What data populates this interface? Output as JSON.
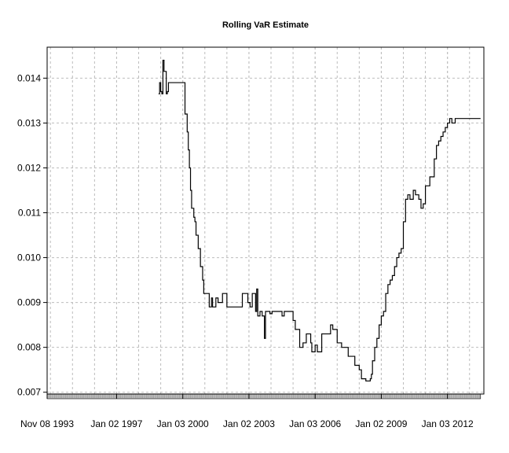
{
  "chart_data": {
    "type": "line",
    "title": "Rolling VaR Estimate",
    "xlabel": "",
    "ylabel": "",
    "x_tick_labels": [
      "Nov 08 1993",
      "Jan 02 1997",
      "Jan 03 2000",
      "Jan 02 2003",
      "Jan 03 2006",
      "Jan 02 2009",
      "Jan 03 2012"
    ],
    "x_ticks": [
      1993.85,
      1997.0,
      2000.0,
      2003.0,
      2006.0,
      2009.0,
      2012.0
    ],
    "xlim": [
      1993.85,
      2013.65
    ],
    "y_ticks": [
      0.007,
      0.008,
      0.009,
      0.01,
      0.011,
      0.012,
      0.013,
      0.014
    ],
    "y_tick_labels": [
      "0.007",
      "0.008",
      "0.009",
      "0.010",
      "0.011",
      "0.012",
      "0.013",
      "0.014"
    ],
    "ylim": [
      0.00696,
      0.01469
    ],
    "grid": true,
    "series": [
      {
        "color": "#000000",
        "step": true,
        "x": [
          1998.9,
          1998.95,
          1999.0,
          1999.05,
          1999.1,
          1999.15,
          1999.25,
          1999.3,
          1999.35,
          1999.45,
          1999.5,
          1999.55,
          1999.6,
          1999.9,
          2000.1,
          2000.2,
          2000.25,
          2000.3,
          2000.35,
          2000.4,
          2000.5,
          2000.55,
          2000.6,
          2000.7,
          2000.8,
          2000.9,
          2000.95,
          2001.2,
          2001.3,
          2001.35,
          2001.5,
          2001.6,
          2001.8,
          2002.0,
          2002.2,
          2002.4,
          2002.6,
          2002.7,
          2002.8,
          2002.95,
          2003.05,
          2003.15,
          2003.3,
          2003.35,
          2003.4,
          2003.5,
          2003.6,
          2003.7,
          2003.75,
          2003.8,
          2003.95,
          2004.05,
          2004.3,
          2004.5,
          2004.6,
          2004.75,
          2004.95,
          2005.0,
          2005.1,
          2005.3,
          2005.45,
          2005.6,
          2005.8,
          2005.85,
          2006.0,
          2006.1,
          2006.3,
          2006.5,
          2006.7,
          2006.8,
          2007.0,
          2007.1,
          2007.2,
          2007.3,
          2007.5,
          2007.6,
          2007.8,
          2007.9,
          2008.0,
          2008.1,
          2008.3,
          2008.5,
          2008.55,
          2008.6,
          2008.7,
          2008.8,
          2008.9,
          2009.0,
          2009.1,
          2009.2,
          2009.3,
          2009.4,
          2009.5,
          2009.6,
          2009.7,
          2009.8,
          2009.9,
          2010.0,
          2010.1,
          2010.2,
          2010.3,
          2010.45,
          2010.55,
          2010.7,
          2010.8,
          2010.9,
          2011.0,
          2011.2,
          2011.4,
          2011.5,
          2011.6,
          2011.7,
          2011.8,
          2011.9,
          2012.0,
          2012.1,
          2012.2,
          2012.35,
          2012.5,
          2012.6,
          2012.7,
          2012.75,
          2012.8,
          2012.9,
          2013.0,
          2013.5
        ],
        "y": [
          0.01365,
          0.0139,
          0.0137,
          0.01365,
          0.0144,
          0.01415,
          0.01365,
          0.0137,
          0.0139,
          0.0139,
          0.0139,
          0.0139,
          0.0139,
          0.0139,
          0.0132,
          0.0128,
          0.0124,
          0.012,
          0.0115,
          0.0111,
          0.0109,
          0.0108,
          0.0105,
          0.0102,
          0.0098,
          0.0095,
          0.0092,
          0.0089,
          0.0091,
          0.0089,
          0.0091,
          0.009,
          0.0092,
          0.0089,
          0.0089,
          0.0089,
          0.0089,
          0.0092,
          0.0092,
          0.009,
          0.0089,
          0.0092,
          0.0088,
          0.0093,
          0.0087,
          0.0088,
          0.0087,
          0.0082,
          0.0088,
          0.0088,
          0.00875,
          0.0088,
          0.0088,
          0.0087,
          0.0088,
          0.0088,
          0.0088,
          0.0086,
          0.0084,
          0.008,
          0.0081,
          0.0083,
          0.0081,
          0.0079,
          0.00805,
          0.0079,
          0.0083,
          0.0083,
          0.0085,
          0.0084,
          0.0081,
          0.0081,
          0.008,
          0.008,
          0.0078,
          0.0078,
          0.0076,
          0.0076,
          0.0075,
          0.0073,
          0.00725,
          0.0073,
          0.0074,
          0.0077,
          0.008,
          0.0082,
          0.0085,
          0.0087,
          0.0088,
          0.0092,
          0.0094,
          0.0095,
          0.0096,
          0.0098,
          0.01,
          0.0101,
          0.0102,
          0.0108,
          0.0113,
          0.0114,
          0.0113,
          0.0115,
          0.0114,
          0.0113,
          0.0111,
          0.0112,
          0.0116,
          0.0118,
          0.0122,
          0.0125,
          0.0126,
          0.0127,
          0.0128,
          0.0129,
          0.013,
          0.0131,
          0.013,
          0.0131,
          0.0131,
          0.0131,
          0.0131,
          0.0131,
          0.0131,
          0.0131,
          0.0131,
          0.0131
        ]
      }
    ]
  }
}
